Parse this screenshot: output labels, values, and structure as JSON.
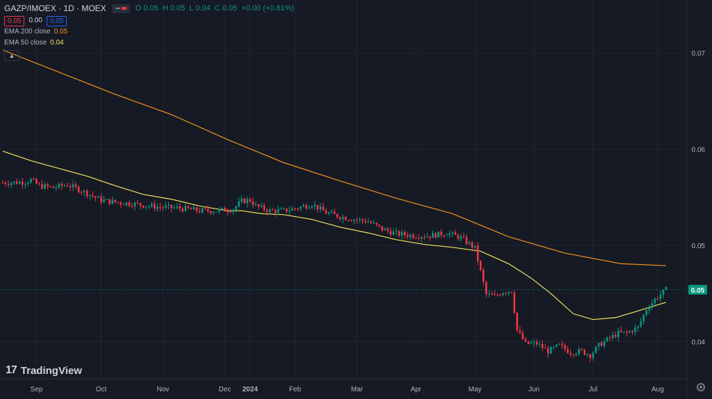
{
  "header": {
    "symbol": "GAZP/IMOEX · 1D · MOEX",
    "ohlc": {
      "o_label": "O",
      "o": "0.05",
      "h_label": "H",
      "h": "0.05",
      "l_label": "L",
      "l": "0.04",
      "c_label": "C",
      "c": "0.05",
      "change": "+0.00 (+0.81%)"
    },
    "sell": "0.05",
    "spread": "0.00",
    "buy": "0.05"
  },
  "indicators": [
    {
      "label": "EMA 200 close",
      "value": "0.05",
      "color": "#f7931a"
    },
    {
      "label": "EMA 50 close",
      "value": "0.04",
      "color": "#f6e65c"
    }
  ],
  "logo": {
    "text": "TradingView"
  },
  "chart_data": {
    "type": "candlestick",
    "x_tick_labels": [
      "Sep",
      "Oct",
      "Nov",
      "Dec",
      "2024",
      "Feb",
      "Mar",
      "Apr",
      "May",
      "Jun",
      "Jul",
      "Aug"
    ],
    "x_tick_bar_index": [
      12,
      35,
      57,
      79,
      88,
      104,
      126,
      147,
      168,
      189,
      210,
      233
    ],
    "y_tick_values": [
      0.04,
      0.05,
      0.06,
      0.07
    ],
    "y_tick_labels": [
      "0.04",
      "0.05",
      "0.06",
      "0.07"
    ],
    "ylim": [
      0.0365,
      0.0755
    ],
    "last_price": 0.0454,
    "last_price_label": "0.05",
    "colors": {
      "up": "#089981",
      "down": "#f23645",
      "ema200": "#f7931a",
      "ema50": "#f6e65c",
      "grid": "#222632",
      "background": "#161a25",
      "text": "#b2b5be"
    },
    "ema200": [
      [
        0,
        0.0703
      ],
      [
        20,
        0.068
      ],
      [
        40,
        0.0657
      ],
      [
        60,
        0.0636
      ],
      [
        80,
        0.061
      ],
      [
        100,
        0.0586
      ],
      [
        120,
        0.0567
      ],
      [
        140,
        0.0549
      ],
      [
        160,
        0.0533
      ],
      [
        180,
        0.0509
      ],
      [
        200,
        0.0492
      ],
      [
        220,
        0.0481
      ],
      [
        236,
        0.0479
      ]
    ],
    "ema50": [
      [
        0,
        0.0598
      ],
      [
        10,
        0.0588
      ],
      [
        20,
        0.058
      ],
      [
        30,
        0.0572
      ],
      [
        40,
        0.0562
      ],
      [
        50,
        0.0553
      ],
      [
        60,
        0.0548
      ],
      [
        70,
        0.0541
      ],
      [
        80,
        0.0536
      ],
      [
        85,
        0.0536
      ],
      [
        92,
        0.0533
      ],
      [
        100,
        0.0532
      ],
      [
        110,
        0.0527
      ],
      [
        120,
        0.0519
      ],
      [
        130,
        0.0513
      ],
      [
        140,
        0.0506
      ],
      [
        150,
        0.0501
      ],
      [
        160,
        0.0498
      ],
      [
        170,
        0.0494
      ],
      [
        180,
        0.0481
      ],
      [
        188,
        0.0466
      ],
      [
        195,
        0.045
      ],
      [
        203,
        0.0429
      ],
      [
        210,
        0.0423
      ],
      [
        218,
        0.0425
      ],
      [
        225,
        0.0431
      ],
      [
        236,
        0.0441
      ]
    ],
    "close_keypoints": [
      [
        0,
        0.0565
      ],
      [
        8,
        0.0566
      ],
      [
        10,
        0.0568
      ],
      [
        13,
        0.0562
      ],
      [
        18,
        0.056
      ],
      [
        23,
        0.0563
      ],
      [
        28,
        0.0557
      ],
      [
        35,
        0.0547
      ],
      [
        40,
        0.0545
      ],
      [
        47,
        0.0543
      ],
      [
        55,
        0.054
      ],
      [
        62,
        0.0539
      ],
      [
        70,
        0.0536
      ],
      [
        76,
        0.0536
      ],
      [
        82,
        0.0538
      ],
      [
        85,
        0.0546
      ],
      [
        88,
        0.0547
      ],
      [
        90,
        0.0541
      ],
      [
        95,
        0.0536
      ],
      [
        100,
        0.0536
      ],
      [
        105,
        0.0539
      ],
      [
        110,
        0.0543
      ],
      [
        115,
        0.0534
      ],
      [
        120,
        0.053
      ],
      [
        125,
        0.0527
      ],
      [
        130,
        0.0525
      ],
      [
        135,
        0.0517
      ],
      [
        140,
        0.0512
      ],
      [
        147,
        0.051
      ],
      [
        152,
        0.051
      ],
      [
        158,
        0.0513
      ],
      [
        163,
        0.0508
      ],
      [
        168,
        0.0497
      ],
      [
        172,
        0.0449
      ],
      [
        175,
        0.0447
      ],
      [
        178,
        0.0452
      ],
      [
        181,
        0.0453
      ],
      [
        183,
        0.0412
      ],
      [
        186,
        0.0398
      ],
      [
        190,
        0.0398
      ],
      [
        194,
        0.039
      ],
      [
        198,
        0.0396
      ],
      [
        202,
        0.0389
      ],
      [
        206,
        0.039
      ],
      [
        209,
        0.0386
      ],
      [
        212,
        0.0396
      ],
      [
        215,
        0.0402
      ],
      [
        219,
        0.0409
      ],
      [
        222,
        0.0409
      ],
      [
        226,
        0.0415
      ],
      [
        229,
        0.0434
      ],
      [
        232,
        0.0444
      ],
      [
        236,
        0.0454
      ]
    ]
  }
}
